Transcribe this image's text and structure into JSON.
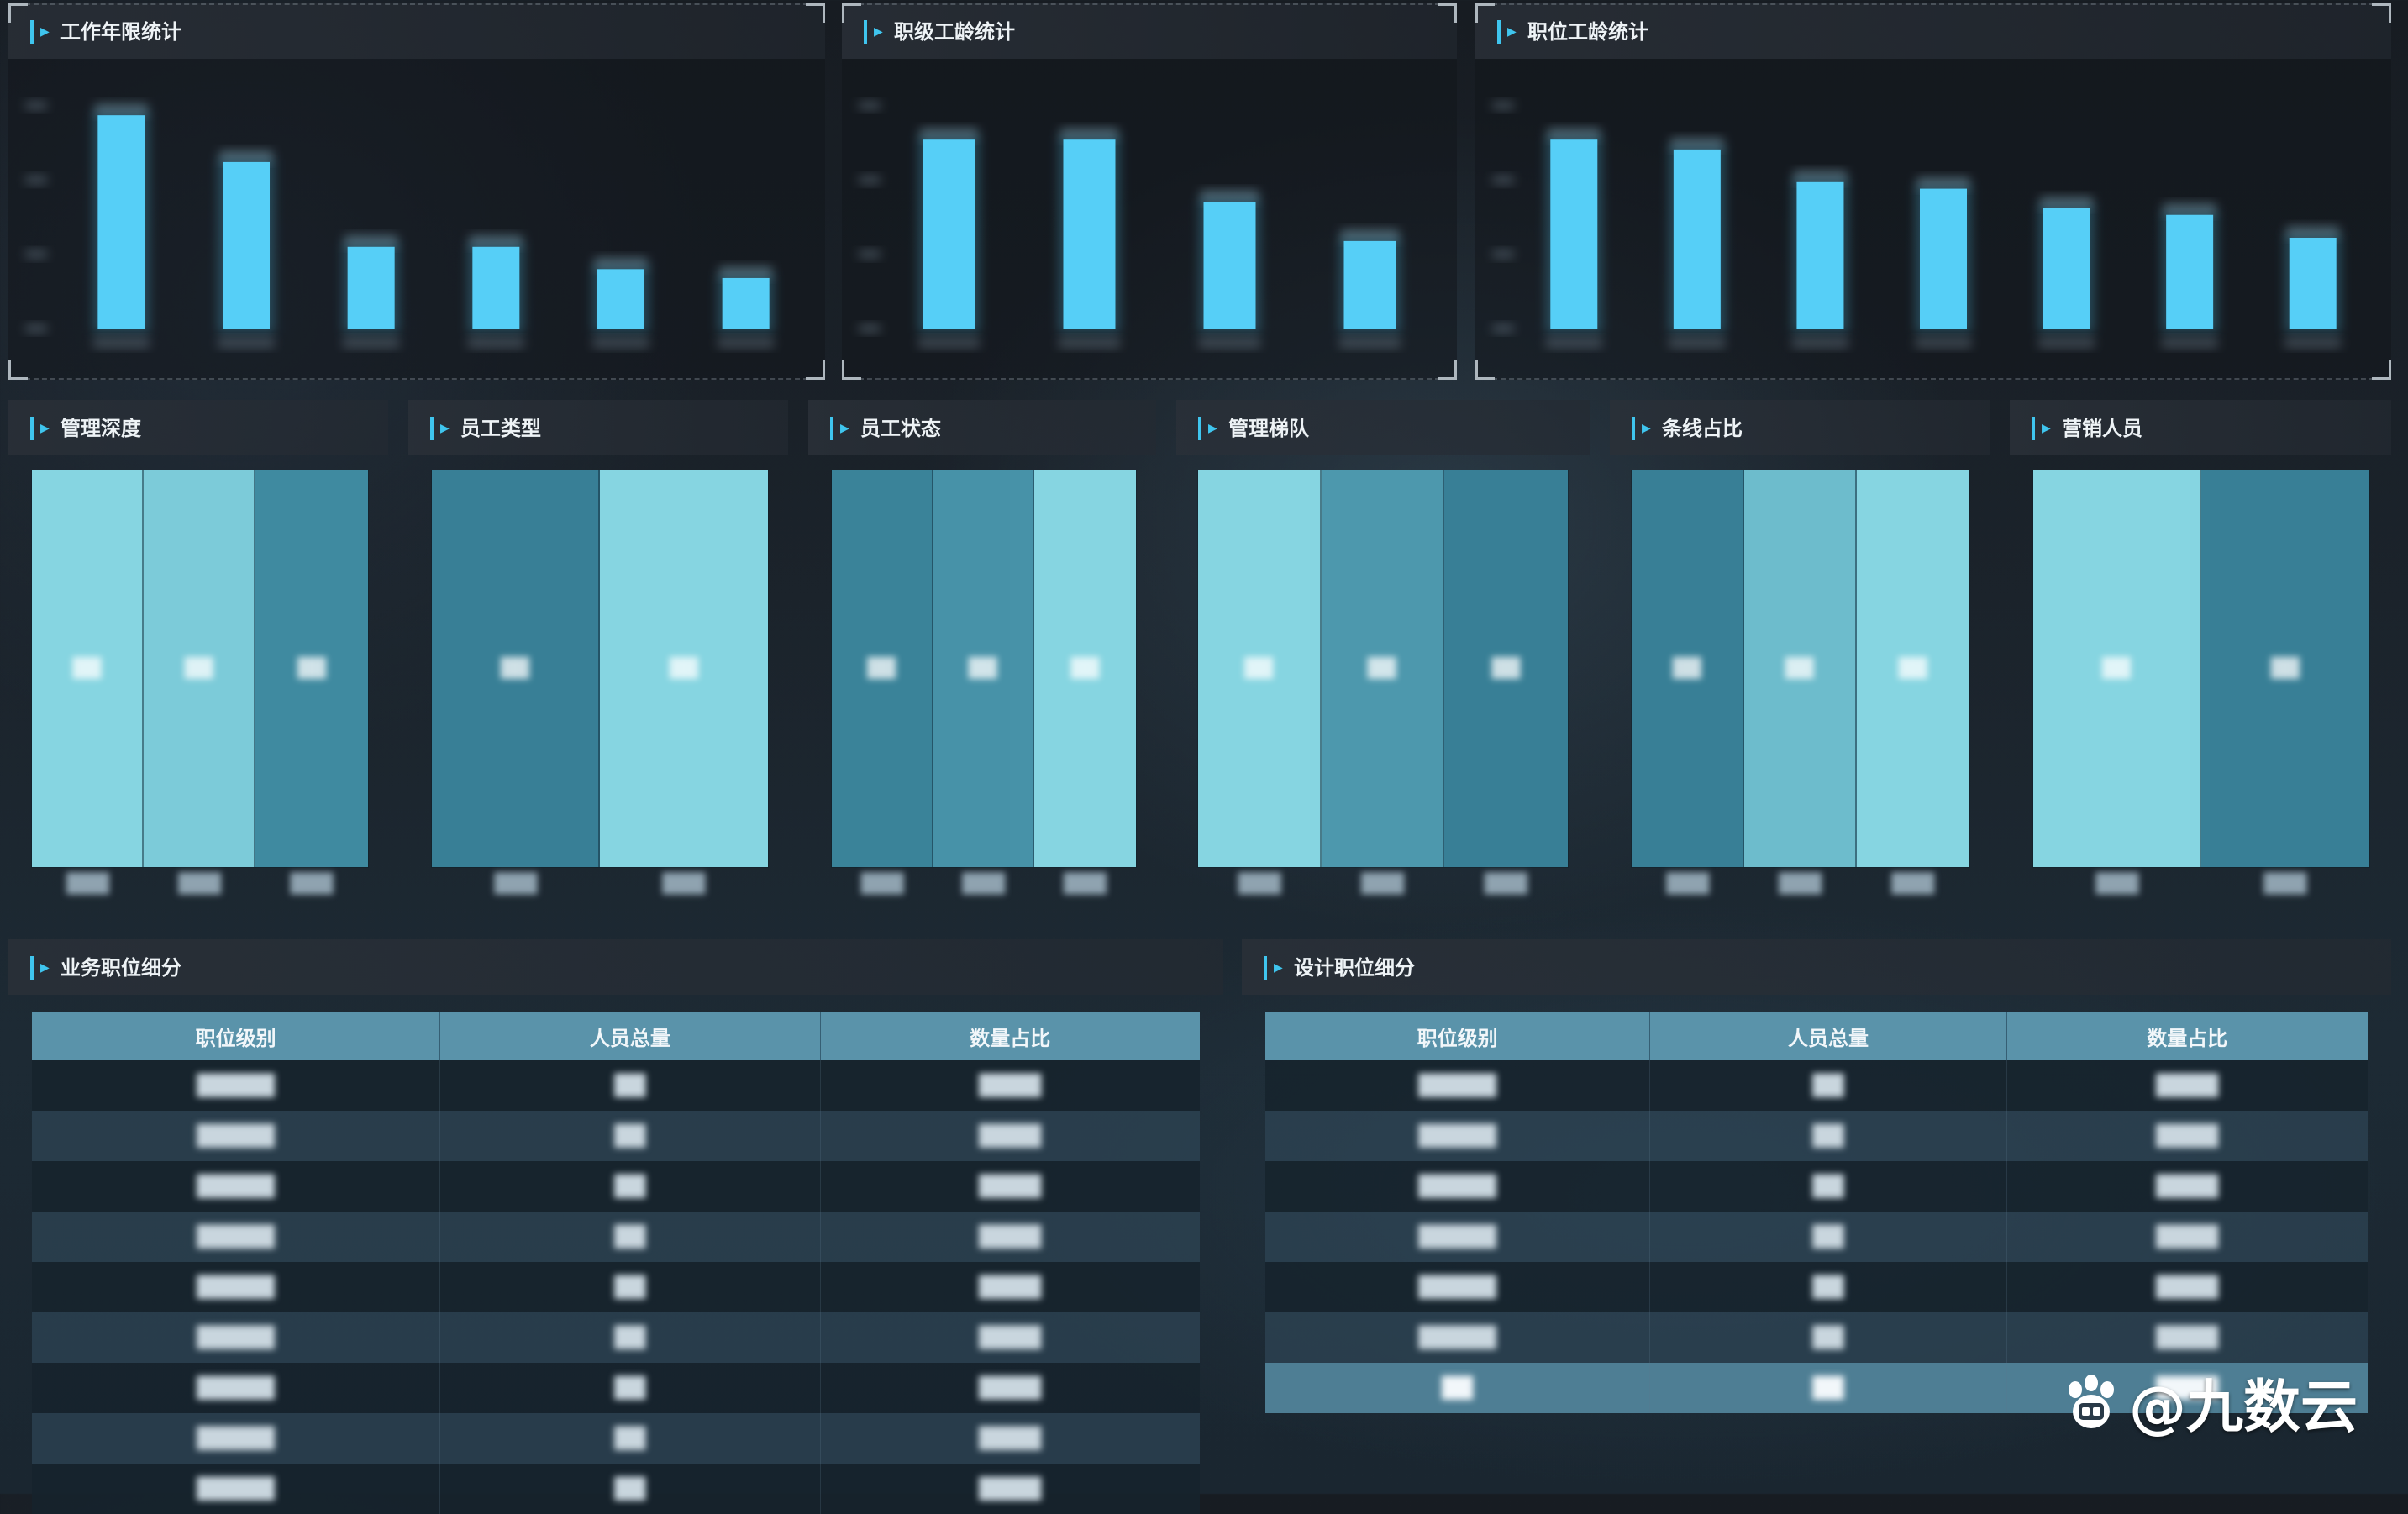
{
  "colors": {
    "accent": "#3fc5ee",
    "bar": "#56cff7",
    "header": "#5a93aa"
  },
  "panels": {
    "work_years": {
      "title": "工作年限统计"
    },
    "rank_age": {
      "title": "职级工龄统计"
    },
    "position_age": {
      "title": "职位工龄统计"
    },
    "mgmt_depth": {
      "title": "管理深度"
    },
    "emp_type": {
      "title": "员工类型"
    },
    "emp_status": {
      "title": "员工状态"
    },
    "mgmt_ladder": {
      "title": "管理梯队"
    },
    "line_ratio": {
      "title": "条线占比"
    },
    "sales_staff": {
      "title": "营销人员"
    },
    "biz_positions": {
      "title": "业务职位细分"
    },
    "design_positions": {
      "title": "设计职位细分"
    }
  },
  "chart_data": [
    {
      "type": "bar",
      "title": "工作年限统计",
      "values": [
        96,
        75,
        37,
        37,
        27,
        23
      ],
      "ylim": [
        0,
        110
      ]
    },
    {
      "type": "bar",
      "title": "职级工龄统计",
      "values": [
        58,
        58,
        39,
        27
      ],
      "ylim": [
        0,
        75
      ]
    },
    {
      "type": "bar",
      "title": "职位工龄统计",
      "values": [
        58,
        55,
        45,
        43,
        37,
        35,
        28
      ],
      "ylim": [
        0,
        75
      ]
    }
  ],
  "treemaps": [
    {
      "key": "mgmt_depth",
      "cells": [
        {
          "share": 0.333,
          "color": "#86d5e1"
        },
        {
          "share": 0.333,
          "color": "#7ccbd9"
        },
        {
          "share": 0.334,
          "color": "#3f8aa0"
        }
      ]
    },
    {
      "key": "emp_type",
      "cells": [
        {
          "share": 0.5,
          "color": "#387f96"
        },
        {
          "share": 0.5,
          "color": "#86d5e1"
        }
      ]
    },
    {
      "key": "emp_status",
      "cells": [
        {
          "share": 0.333,
          "color": "#3a8399"
        },
        {
          "share": 0.333,
          "color": "#4792a8"
        },
        {
          "share": 0.334,
          "color": "#86d5e1"
        }
      ]
    },
    {
      "key": "mgmt_ladder",
      "cells": [
        {
          "share": 0.333,
          "color": "#86d5e1"
        },
        {
          "share": 0.333,
          "color": "#4d98ad"
        },
        {
          "share": 0.334,
          "color": "#387f96"
        }
      ]
    },
    {
      "key": "line_ratio",
      "cells": [
        {
          "share": 0.333,
          "color": "#387f96"
        },
        {
          "share": 0.333,
          "color": "#6dbccc"
        },
        {
          "share": 0.334,
          "color": "#86d5e1"
        }
      ]
    },
    {
      "key": "sales_staff",
      "cells": [
        {
          "share": 0.5,
          "color": "#86d5e1"
        },
        {
          "share": 0.5,
          "color": "#387f96"
        }
      ]
    }
  ],
  "biz_table": {
    "headers": [
      "职位级别",
      "人员总量",
      "数量占比"
    ],
    "rows": 9
  },
  "design_table": {
    "headers": [
      "职位级别",
      "人员总量",
      "数量占比"
    ],
    "rows": 6
  },
  "watermark": {
    "text": "@九数云"
  }
}
